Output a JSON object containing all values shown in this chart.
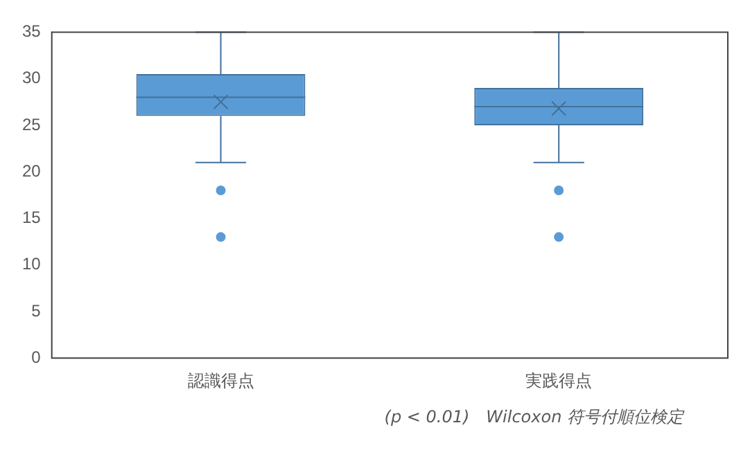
{
  "chart_data": {
    "type": "box",
    "categories": [
      "認識得点",
      "実践得点"
    ],
    "boxes": [
      {
        "low": 21,
        "q1": 26,
        "median": 28,
        "q3": 30.5,
        "high": 35,
        "mean": 27.5,
        "outliers": [
          18,
          13
        ]
      },
      {
        "low": 21,
        "q1": 25,
        "median": 27,
        "q3": 29,
        "high": 35,
        "mean": 26.8,
        "outliers": [
          18,
          13
        ]
      }
    ],
    "color": "#5b9bd5",
    "ylim": [
      0,
      35
    ],
    "yticks": [
      0,
      5,
      10,
      15,
      20,
      25,
      30,
      35
    ],
    "grid": false,
    "legend": false,
    "annotations": [
      "(p < 0.01)　Wilcoxon 符号付順位検定"
    ]
  }
}
